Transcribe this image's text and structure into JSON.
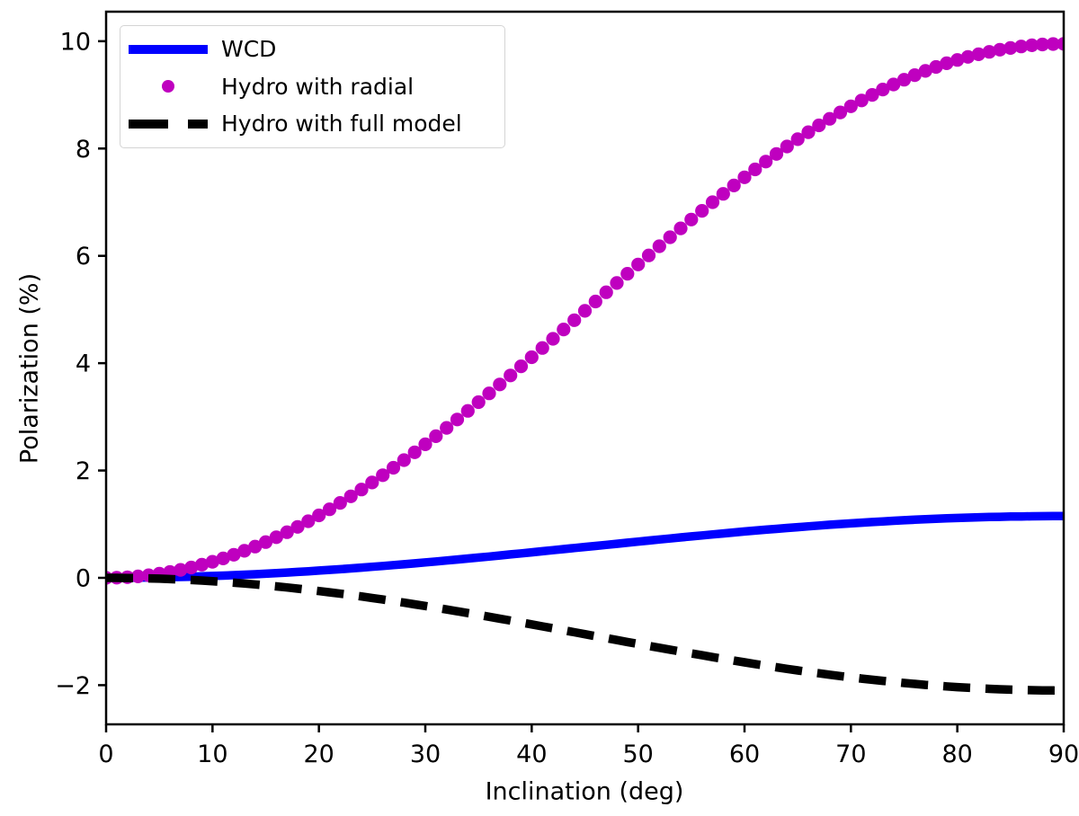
{
  "page": {
    "background": "#ffffff",
    "axis_color": "#000000",
    "text_color": "#000000"
  },
  "chart_data": {
    "type": "line",
    "title": "",
    "xlabel": "Inclination (deg)",
    "ylabel": "Polarization (%)",
    "xlim": [
      0,
      90
    ],
    "ylim": [
      -2.73,
      10.55
    ],
    "xticks": [
      0,
      10,
      20,
      30,
      40,
      50,
      60,
      70,
      80,
      90
    ],
    "yticks": [
      -2,
      0,
      2,
      4,
      6,
      8,
      10
    ],
    "ytick_labels": [
      "−2",
      "0",
      "2",
      "4",
      "6",
      "8",
      "10"
    ],
    "grid": false,
    "legend_position": "upper-left",
    "x": [
      0,
      1,
      2,
      3,
      4,
      5,
      6,
      7,
      8,
      9,
      10,
      11,
      12,
      13,
      14,
      15,
      16,
      17,
      18,
      19,
      20,
      21,
      22,
      23,
      24,
      25,
      26,
      27,
      28,
      29,
      30,
      31,
      32,
      33,
      34,
      35,
      36,
      37,
      38,
      39,
      40,
      41,
      42,
      43,
      44,
      45,
      46,
      47,
      48,
      49,
      50,
      51,
      52,
      53,
      54,
      55,
      56,
      57,
      58,
      59,
      60,
      61,
      62,
      63,
      64,
      65,
      66,
      67,
      68,
      69,
      70,
      71,
      72,
      73,
      74,
      75,
      76,
      77,
      78,
      79,
      80,
      81,
      82,
      83,
      84,
      85,
      86,
      87,
      88,
      89,
      90
    ],
    "series": [
      {
        "name": "WCD",
        "render": "line",
        "linestyle": "solid",
        "color": "#0000ff",
        "linewidth": 9.5,
        "values": [
          0.0,
          0.0,
          0.001,
          0.003,
          0.006,
          0.009,
          0.013,
          0.017,
          0.022,
          0.028,
          0.035,
          0.042,
          0.05,
          0.058,
          0.067,
          0.077,
          0.087,
          0.098,
          0.11,
          0.122,
          0.135,
          0.148,
          0.161,
          0.176,
          0.19,
          0.205,
          0.221,
          0.237,
          0.253,
          0.27,
          0.288,
          0.305,
          0.323,
          0.341,
          0.36,
          0.378,
          0.397,
          0.417,
          0.436,
          0.455,
          0.475,
          0.495,
          0.515,
          0.535,
          0.555,
          0.575,
          0.595,
          0.615,
          0.635,
          0.655,
          0.675,
          0.695,
          0.714,
          0.733,
          0.753,
          0.772,
          0.79,
          0.809,
          0.827,
          0.845,
          0.863,
          0.88,
          0.897,
          0.913,
          0.929,
          0.945,
          0.96,
          0.974,
          0.989,
          1.002,
          1.015,
          1.028,
          1.04,
          1.052,
          1.063,
          1.073,
          1.083,
          1.092,
          1.1,
          1.108,
          1.115,
          1.122,
          1.128,
          1.133,
          1.137,
          1.141,
          1.144,
          1.147,
          1.149,
          1.15,
          1.15
        ]
      },
      {
        "name": "Hydro with radial",
        "render": "scatter",
        "marker": "circle",
        "color": "#bf00bf",
        "marker_radius": 7.6,
        "values": [
          0.0,
          0.003,
          0.012,
          0.027,
          0.048,
          0.076,
          0.109,
          0.148,
          0.193,
          0.244,
          0.3,
          0.362,
          0.43,
          0.504,
          0.582,
          0.667,
          0.756,
          0.851,
          0.95,
          1.055,
          1.164,
          1.278,
          1.396,
          1.519,
          1.646,
          1.777,
          1.912,
          2.051,
          2.193,
          2.339,
          2.488,
          2.639,
          2.794,
          2.951,
          3.111,
          3.273,
          3.438,
          3.604,
          3.771,
          3.941,
          4.111,
          4.283,
          4.455,
          4.628,
          4.801,
          4.975,
          5.149,
          5.322,
          5.495,
          5.667,
          5.839,
          6.009,
          6.179,
          6.346,
          6.512,
          6.677,
          6.839,
          6.999,
          7.156,
          7.311,
          7.463,
          7.611,
          7.757,
          7.899,
          8.038,
          8.173,
          8.304,
          8.431,
          8.554,
          8.672,
          8.786,
          8.895,
          9.0,
          9.1,
          9.194,
          9.283,
          9.368,
          9.446,
          9.52,
          9.588,
          9.65,
          9.707,
          9.757,
          9.802,
          9.841,
          9.874,
          9.902,
          9.923,
          9.938,
          9.947,
          9.95
        ]
      },
      {
        "name": "Hydro with full model",
        "render": "line",
        "linestyle": "dashed",
        "dash_pattern": [
          30,
          17
        ],
        "color": "#000000",
        "linewidth": 9.5,
        "values": [
          0.0,
          -0.001,
          -0.003,
          -0.006,
          -0.01,
          -0.016,
          -0.023,
          -0.031,
          -0.041,
          -0.051,
          -0.063,
          -0.076,
          -0.091,
          -0.106,
          -0.123,
          -0.141,
          -0.16,
          -0.18,
          -0.201,
          -0.223,
          -0.246,
          -0.27,
          -0.295,
          -0.321,
          -0.347,
          -0.375,
          -0.404,
          -0.433,
          -0.463,
          -0.494,
          -0.525,
          -0.557,
          -0.59,
          -0.623,
          -0.657,
          -0.691,
          -0.726,
          -0.761,
          -0.796,
          -0.832,
          -0.868,
          -0.904,
          -0.94,
          -0.977,
          -1.013,
          -1.05,
          -1.087,
          -1.123,
          -1.16,
          -1.196,
          -1.232,
          -1.268,
          -1.304,
          -1.339,
          -1.374,
          -1.409,
          -1.443,
          -1.477,
          -1.51,
          -1.543,
          -1.575,
          -1.606,
          -1.637,
          -1.667,
          -1.696,
          -1.725,
          -1.753,
          -1.779,
          -1.805,
          -1.83,
          -1.854,
          -1.877,
          -1.899,
          -1.92,
          -1.94,
          -1.959,
          -1.977,
          -1.994,
          -2.009,
          -2.024,
          -2.037,
          -2.049,
          -2.059,
          -2.069,
          -2.077,
          -2.084,
          -2.09,
          -2.094,
          -2.097,
          -2.099,
          -2.1
        ]
      }
    ]
  }
}
